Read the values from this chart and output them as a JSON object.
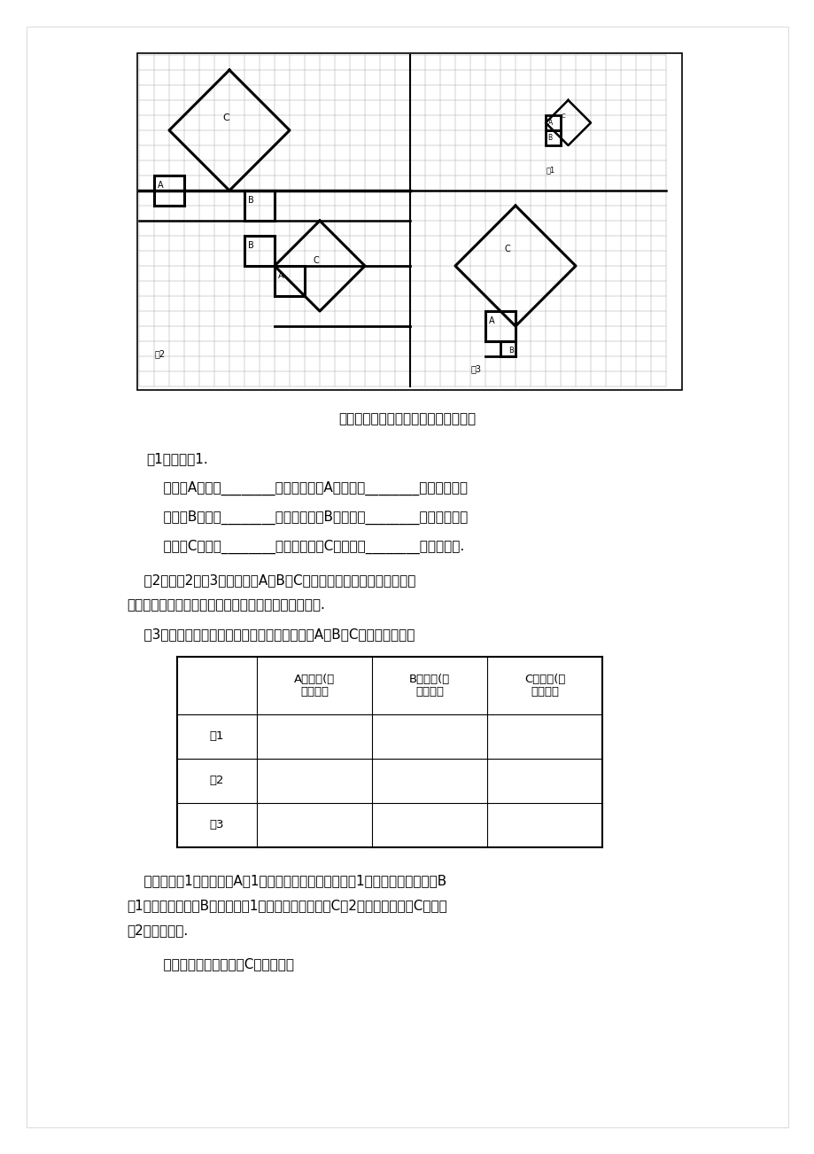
{
  "page_bg": "#ffffff",
  "caption": "（图中每个小方格代表一个单位面积）",
  "q1_title": "（1）观察图1.",
  "q1_line1": "    正方形A中含有________个小方格，即A的面积是________个单位面积；",
  "q1_line2": "    正方形B中含有________个小方格，即B的面积是________个单位面积；",
  "q1_line3": "    正方形C中含有________个小方格，即C的面积是________个单位面积.",
  "q2_line1": "    （2）在图2、图3中，正方形A、B、C中各含有多少个小方格？它们的",
  "q2_line2": "面积各是多少？你是如何得到上述结果的？与同伴交流.",
  "q3": "    （3）请将上述结果填入下表，你能发现正方形A，B，C的面积关系吗？",
  "table_header": [
    "",
    "A的面积(单\n位面积）",
    "B的面积(单\n位面积）",
    "C的面积(单\n位面积）"
  ],
  "table_rows": [
    "图1",
    "图2",
    "图3"
  ],
  "stu_line1": "    【生】在图1中，正方形A含1个小方格，所以它的面积是1个单位面积；正方形B",
  "stu_line2": "含1个小方格，所以B的面积也是1个单位面积；正方形C含2个小方格，所以C的面积",
  "stu_line3": "是2个单位面积.",
  "teacher": "    【师】如何求得正方形C的面积呢？"
}
